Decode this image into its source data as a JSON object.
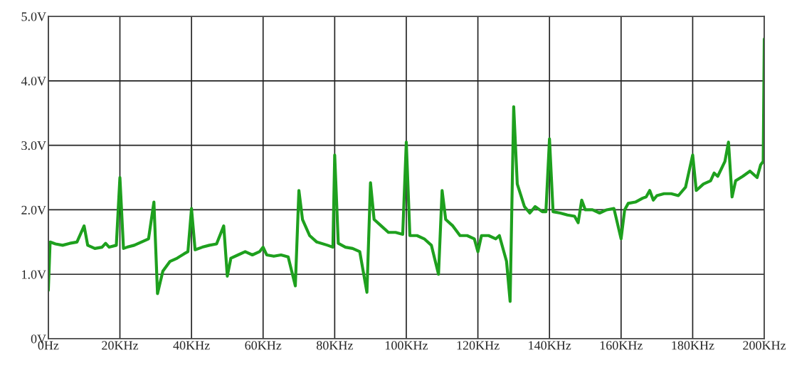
{
  "chart_data": {
    "type": "line",
    "xlim": [
      0,
      200
    ],
    "xticks": [
      {
        "value": 0,
        "label": "0Hz"
      },
      {
        "value": 20,
        "label": "20KHz"
      },
      {
        "value": 40,
        "label": "40KHz"
      },
      {
        "value": 60,
        "label": "60KHz"
      },
      {
        "value": 80,
        "label": "80KHz"
      },
      {
        "value": 100,
        "label": "100KHz"
      },
      {
        "value": 120,
        "label": "120KHz"
      },
      {
        "value": 140,
        "label": "140KHz"
      },
      {
        "value": 160,
        "label": "160KHz"
      },
      {
        "value": 180,
        "label": "180KHz"
      },
      {
        "value": 200,
        "label": "200KHz"
      }
    ],
    "ylim": [
      0,
      5
    ],
    "yticks": [
      {
        "value": 0,
        "label": "0V"
      },
      {
        "value": 1,
        "label": "1.0V"
      },
      {
        "value": 2,
        "label": "2.0V"
      },
      {
        "value": 3,
        "label": "3.0V"
      },
      {
        "value": 4,
        "label": "4.0V"
      },
      {
        "value": 5,
        "label": "5.0V"
      }
    ],
    "grid": true,
    "marker": "none",
    "line_style": "solid",
    "series": [
      {
        "color": "#1ea01e",
        "x": [
          0,
          0.5,
          2,
          4,
          6,
          8,
          10,
          11,
          13,
          15,
          16,
          17,
          19,
          20,
          21,
          22,
          24,
          26,
          28,
          29.5,
          30.5,
          32,
          34,
          36,
          38,
          39,
          40,
          41,
          43,
          45,
          47,
          49,
          50,
          51,
          53,
          55,
          57,
          59,
          60,
          61,
          63,
          65,
          67,
          69,
          70,
          71,
          73,
          75,
          78,
          79.5,
          80,
          81,
          83,
          85,
          87,
          89,
          90,
          91,
          93,
          95,
          97,
          99,
          100,
          101,
          103,
          105,
          107,
          109,
          110,
          111,
          113,
          115,
          117,
          119,
          120,
          121,
          123,
          125,
          126,
          128,
          129,
          130,
          131,
          133,
          134.5,
          136,
          138,
          139,
          140,
          141,
          143,
          145,
          147,
          148,
          149,
          150,
          152,
          154,
          156,
          158,
          160,
          161,
          162,
          164,
          166,
          167,
          168,
          169,
          170,
          172,
          174,
          176,
          178,
          180,
          181,
          183,
          185,
          186,
          187,
          189,
          190,
          191,
          192,
          194,
          196,
          198,
          199,
          199.7,
          200
        ],
        "values": [
          0.75,
          1.5,
          1.47,
          1.45,
          1.48,
          1.5,
          1.75,
          1.45,
          1.4,
          1.42,
          1.48,
          1.42,
          1.45,
          2.5,
          1.4,
          1.42,
          1.45,
          1.5,
          1.55,
          2.12,
          0.7,
          1.05,
          1.2,
          1.25,
          1.32,
          1.35,
          2.02,
          1.38,
          1.42,
          1.45,
          1.47,
          1.75,
          0.97,
          1.25,
          1.3,
          1.35,
          1.3,
          1.35,
          1.42,
          1.3,
          1.28,
          1.3,
          1.27,
          0.82,
          2.3,
          1.85,
          1.6,
          1.5,
          1.45,
          1.42,
          2.85,
          1.48,
          1.42,
          1.4,
          1.35,
          0.72,
          2.42,
          1.85,
          1.75,
          1.65,
          1.65,
          1.62,
          3.05,
          1.6,
          1.6,
          1.55,
          1.45,
          1.0,
          2.3,
          1.85,
          1.75,
          1.6,
          1.6,
          1.55,
          1.35,
          1.6,
          1.6,
          1.55,
          1.6,
          1.2,
          0.58,
          3.6,
          2.4,
          2.05,
          1.95,
          2.05,
          1.97,
          1.97,
          3.1,
          1.97,
          1.95,
          1.92,
          1.9,
          1.8,
          2.15,
          2.0,
          2.0,
          1.95,
          2.0,
          2.02,
          1.55,
          2.0,
          2.1,
          2.12,
          2.18,
          2.2,
          2.3,
          2.15,
          2.22,
          2.25,
          2.25,
          2.22,
          2.35,
          2.85,
          2.3,
          2.4,
          2.45,
          2.57,
          2.52,
          2.75,
          3.05,
          2.2,
          2.45,
          2.52,
          2.6,
          2.5,
          2.7,
          2.75,
          4.65
        ]
      }
    ]
  }
}
